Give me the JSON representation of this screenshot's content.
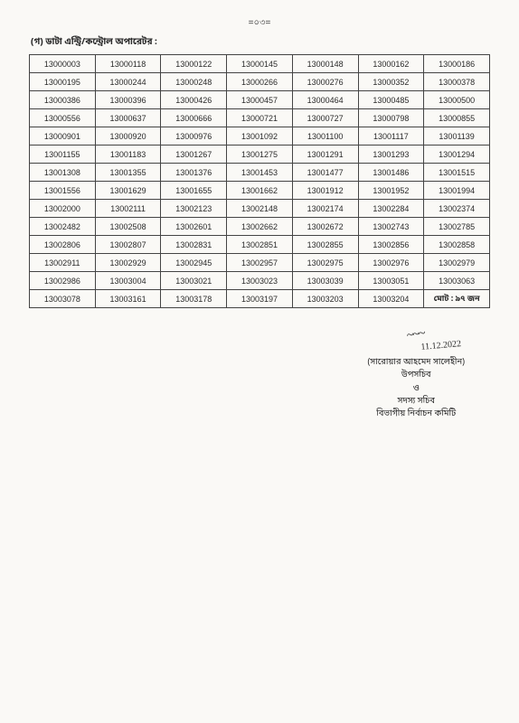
{
  "page_number": "=০৩=",
  "section_title": "(গ) ডাটা এন্ট্রি/কন্ট্রোল অপারেটর :",
  "table": {
    "columns": 7,
    "rows": [
      [
        "13000003",
        "13000118",
        "13000122",
        "13000145",
        "13000148",
        "13000162",
        "13000186"
      ],
      [
        "13000195",
        "13000244",
        "13000248",
        "13000266",
        "13000276",
        "13000352",
        "13000378"
      ],
      [
        "13000386",
        "13000396",
        "13000426",
        "13000457",
        "13000464",
        "13000485",
        "13000500"
      ],
      [
        "13000556",
        "13000637",
        "13000666",
        "13000721",
        "13000727",
        "13000798",
        "13000855"
      ],
      [
        "13000901",
        "13000920",
        "13000976",
        "13001092",
        "13001100",
        "13001117",
        "13001139"
      ],
      [
        "13001155",
        "13001183",
        "13001267",
        "13001275",
        "13001291",
        "13001293",
        "13001294"
      ],
      [
        "13001308",
        "13001355",
        "13001376",
        "13001453",
        "13001477",
        "13001486",
        "13001515"
      ],
      [
        "13001556",
        "13001629",
        "13001655",
        "13001662",
        "13001912",
        "13001952",
        "13001994"
      ],
      [
        "13002000",
        "13002111",
        "13002123",
        "13002148",
        "13002174",
        "13002284",
        "13002374"
      ],
      [
        "13002482",
        "13002508",
        "13002601",
        "13002662",
        "13002672",
        "13002743",
        "13002785"
      ],
      [
        "13002806",
        "13002807",
        "13002831",
        "13002851",
        "13002855",
        "13002856",
        "13002858"
      ],
      [
        "13002911",
        "13002929",
        "13002945",
        "13002957",
        "13002975",
        "13002976",
        "13002979"
      ],
      [
        "13002986",
        "13003004",
        "13003021",
        "13003023",
        "13003039",
        "13003051",
        "13003063"
      ],
      [
        "13003078",
        "13003161",
        "13003178",
        "13003197",
        "13003203",
        "13003204",
        "মোট : ৯৭ জন"
      ]
    ],
    "border_color": "#444444",
    "cell_fontsize": 9,
    "background_color": "#faf9f6"
  },
  "signature": {
    "scribble": "~~~",
    "date": "11.12.2022",
    "name": "(সারোয়ার আহমেদ সালেহীন)",
    "title1": "উপসচিব",
    "amp": "ও",
    "title2": "সদস্য সচিব",
    "title3": "বিভাগীয় নির্বাচন কমিটি"
  }
}
